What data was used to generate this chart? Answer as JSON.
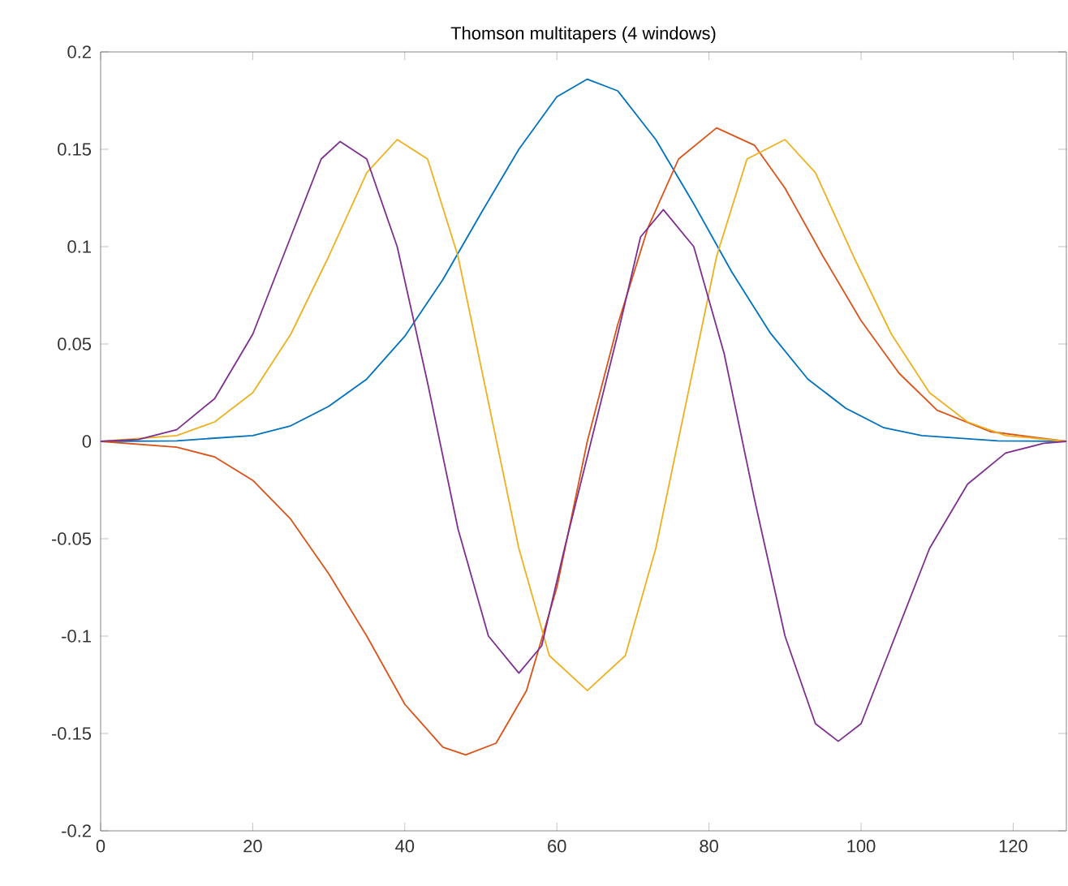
{
  "chart_data": {
    "type": "line",
    "title": "Thomson multitapers (4 windows)",
    "xlim": [
      0,
      127
    ],
    "ylim": [
      -0.2,
      0.2
    ],
    "xticks": [
      0,
      20,
      40,
      60,
      80,
      100,
      120
    ],
    "yticks": [
      -0.2,
      -0.15,
      -0.1,
      -0.05,
      0,
      0.05,
      0.1,
      0.15,
      0.2
    ],
    "grid": false,
    "legend": false,
    "series": [
      {
        "color": "#0072bd",
        "x": [
          0,
          10,
          20,
          25,
          30,
          35,
          40,
          45,
          50,
          55,
          60,
          64,
          68,
          73,
          78,
          83,
          88,
          93,
          98,
          103,
          108,
          118,
          127
        ],
        "values": [
          0,
          0.0003,
          0.003,
          0.008,
          0.018,
          0.032,
          0.054,
          0.083,
          0.117,
          0.15,
          0.177,
          0.186,
          0.18,
          0.155,
          0.122,
          0.087,
          0.056,
          0.032,
          0.017,
          0.007,
          0.003,
          0.0003,
          0
        ]
      },
      {
        "color": "#d95319",
        "x": [
          0,
          10,
          15,
          20,
          25,
          30,
          35,
          40,
          45,
          48,
          52,
          56,
          60,
          64,
          68,
          72,
          76,
          81,
          86,
          90,
          95,
          100,
          105,
          110,
          117,
          127
        ],
        "values": [
          0,
          -0.003,
          -0.008,
          -0.02,
          -0.04,
          -0.068,
          -0.1,
          -0.135,
          -0.157,
          -0.161,
          -0.155,
          -0.128,
          -0.075,
          0,
          0.06,
          0.11,
          0.145,
          0.161,
          0.152,
          0.13,
          0.095,
          0.062,
          0.035,
          0.016,
          0.005,
          0
        ]
      },
      {
        "color": "#edb120",
        "x": [
          0,
          10,
          15,
          20,
          25,
          30,
          35,
          39,
          43,
          47,
          51,
          55,
          59,
          64,
          69,
          73,
          77,
          81,
          85,
          90,
          94,
          99,
          104,
          109,
          114,
          119,
          127
        ],
        "values": [
          0,
          0.003,
          0.01,
          0.025,
          0.055,
          0.095,
          0.138,
          0.155,
          0.145,
          0.095,
          0.02,
          -0.055,
          -0.11,
          -0.128,
          -0.11,
          -0.055,
          0.02,
          0.095,
          0.145,
          0.155,
          0.138,
          0.095,
          0.055,
          0.025,
          0.01,
          0.003,
          0
        ]
      },
      {
        "color": "#7e2f8e",
        "x": [
          0,
          5,
          10,
          15,
          20,
          25,
          29,
          31.5,
          35,
          39,
          43,
          47,
          51,
          55,
          58,
          61,
          64.5,
          68,
          71,
          74,
          78,
          82,
          86,
          90,
          94,
          97,
          100,
          104,
          109,
          114,
          119,
          124,
          127
        ],
        "values": [
          0,
          0.001,
          0.006,
          0.022,
          0.055,
          0.105,
          0.145,
          0.154,
          0.145,
          0.1,
          0.03,
          -0.045,
          -0.1,
          -0.119,
          -0.105,
          -0.055,
          0,
          0.055,
          0.105,
          0.119,
          0.1,
          0.045,
          -0.03,
          -0.1,
          -0.145,
          -0.154,
          -0.145,
          -0.105,
          -0.055,
          -0.022,
          -0.006,
          -0.001,
          0
        ]
      }
    ]
  }
}
